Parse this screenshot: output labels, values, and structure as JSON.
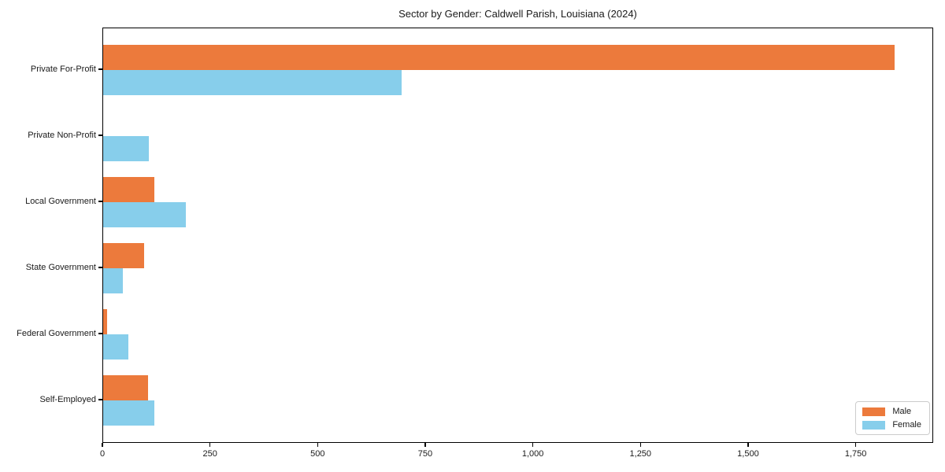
{
  "chart_data": {
    "type": "bar",
    "orientation": "horizontal",
    "title": "Sector by Gender: Caldwell Parish, Louisiana (2024)",
    "categories": [
      "Private For-Profit",
      "Private Non-Profit",
      "Local Government",
      "State Government",
      "Federal Government",
      "Self-Employed"
    ],
    "series": [
      {
        "name": "Male",
        "color": "#ec7a3c",
        "values": [
          1838,
          0,
          119,
          95,
          9,
          104
        ]
      },
      {
        "name": "Female",
        "color": "#87ceeb",
        "values": [
          693,
          106,
          192,
          46,
          58,
          119
        ]
      }
    ],
    "xlabel": "",
    "ylabel": "",
    "xlim": [
      0,
      1930
    ],
    "xticks": [
      0,
      250,
      500,
      750,
      1000,
      1250,
      1500,
      1750
    ],
    "xtick_labels": [
      "0",
      "250",
      "500",
      "750",
      "1,000",
      "1,250",
      "1,500",
      "1,750"
    ],
    "grid": false,
    "legend": {
      "position": "lower-right"
    }
  }
}
